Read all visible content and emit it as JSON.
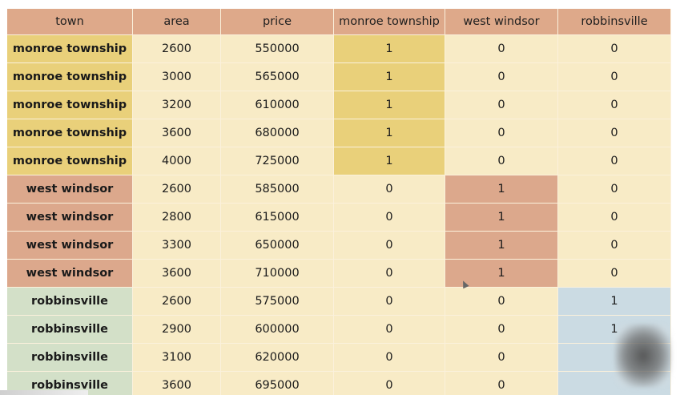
{
  "table": {
    "headers": [
      "town",
      "area",
      "price",
      "monroe township",
      "west windsor",
      "robbinsville"
    ],
    "rows": [
      {
        "group": "monroe",
        "cells": [
          "monroe township",
          "2600",
          "550000",
          "1",
          "0",
          "0"
        ]
      },
      {
        "group": "monroe",
        "cells": [
          "monroe township",
          "3000",
          "565000",
          "1",
          "0",
          "0"
        ]
      },
      {
        "group": "monroe",
        "cells": [
          "monroe township",
          "3200",
          "610000",
          "1",
          "0",
          "0"
        ]
      },
      {
        "group": "monroe",
        "cells": [
          "monroe township",
          "3600",
          "680000",
          "1",
          "0",
          "0"
        ]
      },
      {
        "group": "monroe",
        "cells": [
          "monroe township",
          "4000",
          "725000",
          "1",
          "0",
          "0"
        ]
      },
      {
        "group": "windsor",
        "cells": [
          "west windsor",
          "2600",
          "585000",
          "0",
          "1",
          "0"
        ]
      },
      {
        "group": "windsor",
        "cells": [
          "west windsor",
          "2800",
          "615000",
          "0",
          "1",
          "0"
        ]
      },
      {
        "group": "windsor",
        "cells": [
          "west windsor",
          "3300",
          "650000",
          "0",
          "1",
          "0"
        ]
      },
      {
        "group": "windsor",
        "cells": [
          "west windsor",
          "3600",
          "710000",
          "0",
          "1",
          "0"
        ]
      },
      {
        "group": "robbins",
        "cells": [
          "robbinsville",
          "2600",
          "575000",
          "0",
          "0",
          "1"
        ]
      },
      {
        "group": "robbins",
        "cells": [
          "robbinsville",
          "2900",
          "600000",
          "0",
          "0",
          "1"
        ]
      },
      {
        "group": "robbins",
        "cells": [
          "robbinsville",
          "3100",
          "620000",
          "0",
          "0",
          ""
        ]
      },
      {
        "group": "robbins",
        "cells": [
          "robbinsville",
          "3600",
          "695000",
          "0",
          "0",
          ""
        ]
      }
    ]
  },
  "colors": {
    "header": "#dea98a",
    "cell": "#f8ebc6",
    "monroe": "#e9d07a",
    "windsor": "#dca88c",
    "robbins_town": "#d3e0c8",
    "robbins_flag": "#cbdbe3"
  }
}
